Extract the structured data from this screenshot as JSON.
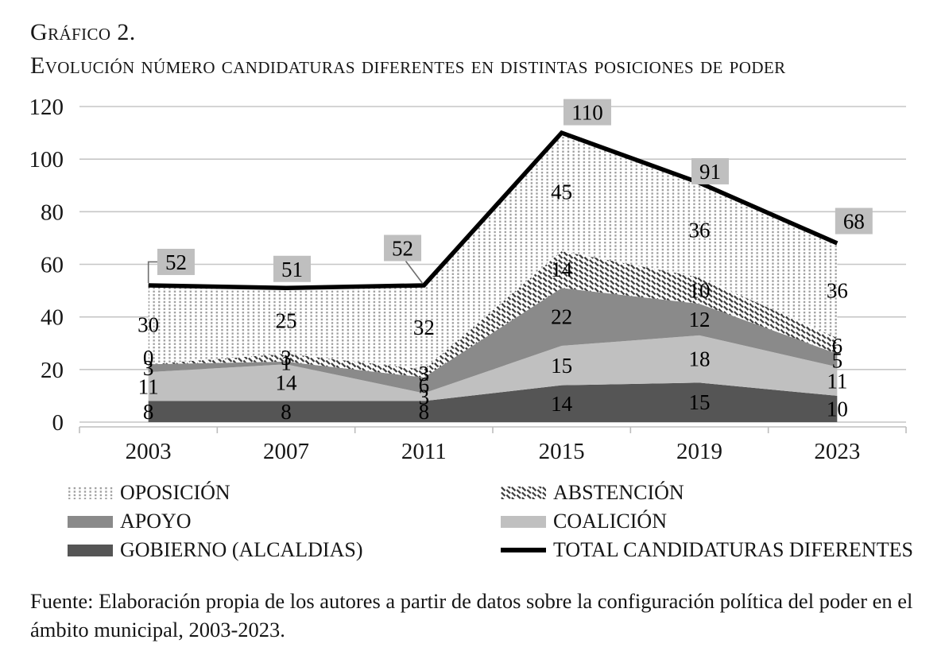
{
  "page": {
    "title_line1": "Gráfico 2.",
    "title_line2": "Evolución número candidaturas diferentes en distintas posiciones de poder",
    "source_note": "Fuente: Elaboración propia de los autores a partir de datos sobre la configuración política del poder en el ámbito municipal, 2003-2023."
  },
  "legend": {
    "items": [
      {
        "label": "OPOSICIÓN",
        "swatch": "dots"
      },
      {
        "label": "ABSTENCIÓN",
        "swatch": "hatch"
      },
      {
        "label": "APOYO",
        "swatch": "solid-medium-gray"
      },
      {
        "label": "COALICIÓN",
        "swatch": "solid-light-gray"
      },
      {
        "label": "GOBIERNO (ALCALDIAS)",
        "swatch": "solid-dark-gray"
      },
      {
        "label": "TOTAL CANDIDATURAS DIFERENTES",
        "swatch": "thick-black-line"
      }
    ]
  },
  "chart_data": {
    "type": "area",
    "stacked": true,
    "title": "Evolución número candidaturas diferentes en distintas posiciones de poder",
    "categories": [
      "2003",
      "2007",
      "2011",
      "2015",
      "2019",
      "2023"
    ],
    "series": [
      {
        "key": "gobierno",
        "name": "GOBIERNO (ALCALDIAS)",
        "values": [
          8,
          8,
          8,
          14,
          15,
          10
        ],
        "fill": "#555555"
      },
      {
        "key": "coalicion",
        "name": "COALICIÓN",
        "values": [
          11,
          14,
          3,
          15,
          18,
          11
        ],
        "fill": "#c0c0c0"
      },
      {
        "key": "apoyo",
        "name": "APOYO",
        "values": [
          3,
          1,
          6,
          22,
          12,
          5
        ],
        "fill": "#8a8a8a"
      },
      {
        "key": "abstencion",
        "name": "ABSTENCIÓN",
        "values": [
          0,
          3,
          3,
          14,
          10,
          6
        ],
        "fill": "pattern:hatch"
      },
      {
        "key": "oposicion",
        "name": "OPOSICIÓN",
        "values": [
          30,
          25,
          32,
          45,
          36,
          36
        ],
        "fill": "pattern:dots"
      }
    ],
    "total_line": {
      "key": "total",
      "name": "TOTAL CANDIDATURAS DIFERENTES",
      "values": [
        52,
        51,
        52,
        110,
        91,
        68
      ],
      "color": "#000000"
    },
    "ylim": [
      0,
      120
    ],
    "yticks": [
      0,
      20,
      40,
      60,
      80,
      100,
      120
    ],
    "grid": true,
    "legend_position": "bottom",
    "colors": {
      "gridline": "#c6c6c6",
      "axis_line": "#bdbdbd",
      "label_box_bg": "#bfbfbf",
      "dots_pattern": "#9b9b9b",
      "hatch_pattern": "#3f3f3f",
      "text": "#000000"
    }
  }
}
